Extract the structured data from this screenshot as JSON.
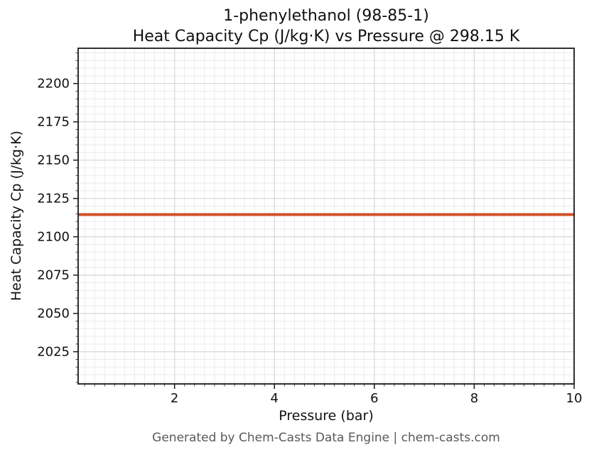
{
  "chart_data": {
    "type": "line",
    "title": "1-phenylethanol (98-85-1)",
    "subtitle": "Heat Capacity Cp (J/kg·K) vs Pressure @ 298.15 K",
    "xlabel": "Pressure (bar)",
    "ylabel": "Heat Capacity Cp (J/kg·K)",
    "footer": "Generated by Chem-Casts Data Engine | chem-casts.com",
    "xlim": [
      0.07,
      10
    ],
    "ylim": [
      2004,
      2223
    ],
    "xticks": [
      2,
      4,
      6,
      8,
      10
    ],
    "yticks": [
      2025,
      2050,
      2075,
      2100,
      2125,
      2150,
      2175,
      2200
    ],
    "x_minor_step": 0.2,
    "y_minor_step": 5,
    "grid": true,
    "minor_grid": true,
    "legend": "none",
    "series": [
      {
        "name": "Heat Capacity Cp",
        "x": [
          0.07,
          10
        ],
        "values": [
          2114.5,
          2114.5
        ],
        "color": "#d2512a",
        "linewidth": 4
      }
    ],
    "colors": {
      "minor_grid": "#ebebeb",
      "major_grid": "#d6d6d6",
      "spine": "#1a1a1a",
      "tick_label": "#111111",
      "background": "#ffffff"
    }
  }
}
